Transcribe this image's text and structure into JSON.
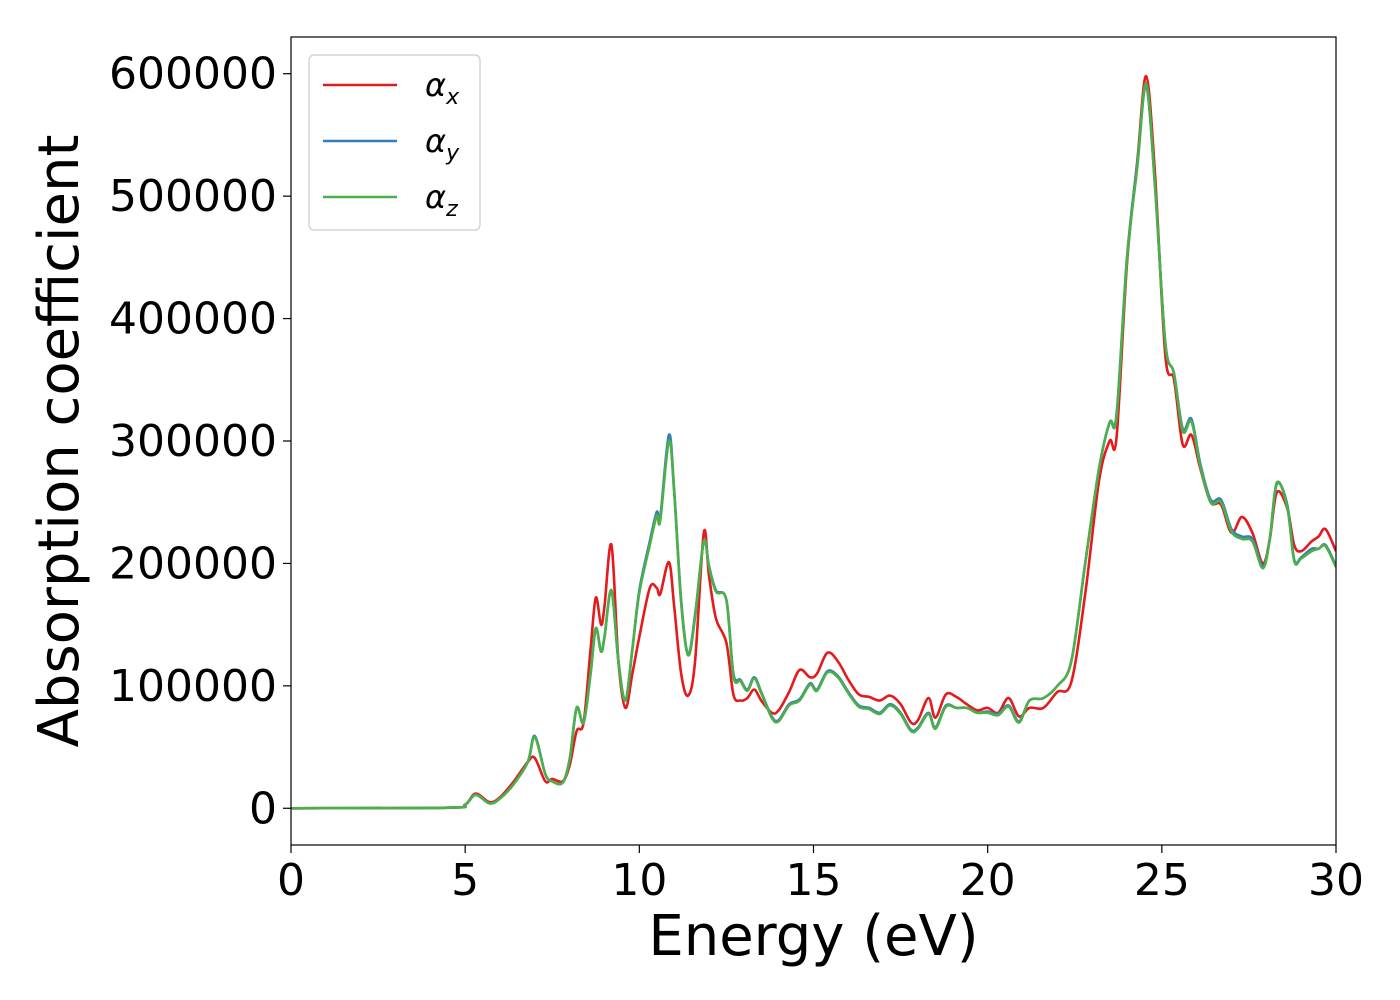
{
  "chart_data": {
    "type": "line",
    "title": "",
    "xlabel": "Energy (eV)",
    "ylabel": "Absorption coefficient",
    "xlim": [
      0,
      30
    ],
    "ylim": [
      -30000,
      630000
    ],
    "xticks": [
      0,
      5,
      10,
      15,
      20,
      25,
      30
    ],
    "yticks": [
      0,
      100000,
      200000,
      300000,
      400000,
      500000,
      600000
    ],
    "grid": false,
    "legend_position": "top-left",
    "series": [
      {
        "name": "α",
        "subscript": "x",
        "color": "#e41a1c",
        "points": [
          [
            0,
            0
          ],
          [
            4.5,
            500
          ],
          [
            5,
            3000
          ],
          [
            5.3,
            12000
          ],
          [
            5.7,
            5000
          ],
          [
            6,
            9000
          ],
          [
            6.4,
            22000
          ],
          [
            6.8,
            38000
          ],
          [
            7,
            41000
          ],
          [
            7.3,
            22000
          ],
          [
            7.5,
            24000
          ],
          [
            7.8,
            22000
          ],
          [
            8.0,
            35000
          ],
          [
            8.2,
            63000
          ],
          [
            8.4,
            70000
          ],
          [
            8.6,
            130000
          ],
          [
            8.75,
            172000
          ],
          [
            8.9,
            150000
          ],
          [
            9.0,
            165000
          ],
          [
            9.2,
            215000
          ],
          [
            9.4,
            120000
          ],
          [
            9.6,
            82000
          ],
          [
            9.8,
            110000
          ],
          [
            10.0,
            140000
          ],
          [
            10.3,
            180000
          ],
          [
            10.5,
            180000
          ],
          [
            10.6,
            175000
          ],
          [
            10.85,
            201000
          ],
          [
            11.0,
            165000
          ],
          [
            11.2,
            110000
          ],
          [
            11.4,
            92000
          ],
          [
            11.6,
            120000
          ],
          [
            11.85,
            225000
          ],
          [
            12.0,
            190000
          ],
          [
            12.2,
            155000
          ],
          [
            12.5,
            135000
          ],
          [
            12.7,
            93000
          ],
          [
            12.9,
            88000
          ],
          [
            13.1,
            90000
          ],
          [
            13.3,
            97000
          ],
          [
            13.5,
            88000
          ],
          [
            13.8,
            78000
          ],
          [
            14.0,
            80000
          ],
          [
            14.3,
            95000
          ],
          [
            14.6,
            113000
          ],
          [
            14.9,
            107000
          ],
          [
            15.1,
            110000
          ],
          [
            15.4,
            127000
          ],
          [
            15.7,
            120000
          ],
          [
            16.0,
            105000
          ],
          [
            16.3,
            93000
          ],
          [
            16.6,
            91000
          ],
          [
            16.9,
            88000
          ],
          [
            17.2,
            92000
          ],
          [
            17.5,
            85000
          ],
          [
            17.8,
            70000
          ],
          [
            18.0,
            72000
          ],
          [
            18.3,
            90000
          ],
          [
            18.5,
            74000
          ],
          [
            18.8,
            93000
          ],
          [
            19.1,
            91000
          ],
          [
            19.4,
            85000
          ],
          [
            19.7,
            80000
          ],
          [
            20.0,
            82000
          ],
          [
            20.3,
            78000
          ],
          [
            20.6,
            90000
          ],
          [
            20.9,
            75000
          ],
          [
            21.2,
            82000
          ],
          [
            21.6,
            82000
          ],
          [
            22.0,
            95000
          ],
          [
            22.4,
            103000
          ],
          [
            22.8,
            175000
          ],
          [
            23.2,
            268000
          ],
          [
            23.5,
            300000
          ],
          [
            23.7,
            303000
          ],
          [
            24.0,
            445000
          ],
          [
            24.3,
            530000
          ],
          [
            24.55,
            598000
          ],
          [
            24.8,
            520000
          ],
          [
            25.1,
            370000
          ],
          [
            25.35,
            350000
          ],
          [
            25.6,
            297000
          ],
          [
            25.85,
            305000
          ],
          [
            26.1,
            278000
          ],
          [
            26.4,
            250000
          ],
          [
            26.7,
            248000
          ],
          [
            27.0,
            225000
          ],
          [
            27.3,
            238000
          ],
          [
            27.6,
            225000
          ],
          [
            27.9,
            200000
          ],
          [
            28.1,
            220000
          ],
          [
            28.3,
            258000
          ],
          [
            28.6,
            245000
          ],
          [
            28.8,
            215000
          ],
          [
            29.0,
            210000
          ],
          [
            29.3,
            218000
          ],
          [
            29.5,
            222000
          ],
          [
            29.7,
            228000
          ],
          [
            30.0,
            210000
          ]
        ]
      },
      {
        "name": "α",
        "subscript": "y",
        "color": "#377eb8",
        "points": [
          [
            0,
            0
          ],
          [
            4.5,
            500
          ],
          [
            5,
            3000
          ],
          [
            5.3,
            11000
          ],
          [
            5.7,
            4000
          ],
          [
            6,
            8000
          ],
          [
            6.4,
            20000
          ],
          [
            6.8,
            38000
          ],
          [
            7,
            59000
          ],
          [
            7.3,
            28000
          ],
          [
            7.5,
            22000
          ],
          [
            7.8,
            21000
          ],
          [
            8.0,
            40000
          ],
          [
            8.2,
            82000
          ],
          [
            8.4,
            70000
          ],
          [
            8.6,
            110000
          ],
          [
            8.75,
            147000
          ],
          [
            8.9,
            128000
          ],
          [
            9.0,
            140000
          ],
          [
            9.2,
            178000
          ],
          [
            9.4,
            120000
          ],
          [
            9.6,
            88000
          ],
          [
            9.8,
            130000
          ],
          [
            10.0,
            178000
          ],
          [
            10.3,
            218000
          ],
          [
            10.5,
            242000
          ],
          [
            10.6,
            238000
          ],
          [
            10.85,
            305000
          ],
          [
            11.0,
            260000
          ],
          [
            11.2,
            170000
          ],
          [
            11.4,
            126000
          ],
          [
            11.6,
            158000
          ],
          [
            11.85,
            218000
          ],
          [
            12.0,
            198000
          ],
          [
            12.2,
            178000
          ],
          [
            12.5,
            170000
          ],
          [
            12.7,
            110000
          ],
          [
            12.9,
            105000
          ],
          [
            13.1,
            97000
          ],
          [
            13.3,
            107000
          ],
          [
            13.5,
            95000
          ],
          [
            13.8,
            75000
          ],
          [
            14.0,
            72000
          ],
          [
            14.3,
            85000
          ],
          [
            14.6,
            89000
          ],
          [
            14.9,
            102000
          ],
          [
            15.1,
            97000
          ],
          [
            15.4,
            112000
          ],
          [
            15.7,
            108000
          ],
          [
            16.0,
            95000
          ],
          [
            16.3,
            84000
          ],
          [
            16.6,
            82000
          ],
          [
            16.9,
            78000
          ],
          [
            17.2,
            85000
          ],
          [
            17.5,
            78000
          ],
          [
            17.8,
            64000
          ],
          [
            18.0,
            66000
          ],
          [
            18.3,
            78000
          ],
          [
            18.5,
            66000
          ],
          [
            18.8,
            84000
          ],
          [
            19.1,
            82000
          ],
          [
            19.4,
            82000
          ],
          [
            19.7,
            78000
          ],
          [
            20.0,
            79000
          ],
          [
            20.3,
            77000
          ],
          [
            20.6,
            84000
          ],
          [
            20.9,
            71000
          ],
          [
            21.2,
            88000
          ],
          [
            21.6,
            90000
          ],
          [
            22.0,
            100000
          ],
          [
            22.4,
            120000
          ],
          [
            22.8,
            200000
          ],
          [
            23.2,
            278000
          ],
          [
            23.5,
            315000
          ],
          [
            23.7,
            322000
          ],
          [
            24.0,
            450000
          ],
          [
            24.3,
            528000
          ],
          [
            24.55,
            590000
          ],
          [
            24.8,
            510000
          ],
          [
            25.1,
            380000
          ],
          [
            25.35,
            355000
          ],
          [
            25.6,
            310000
          ],
          [
            25.85,
            318000
          ],
          [
            26.1,
            282000
          ],
          [
            26.4,
            252000
          ],
          [
            26.7,
            252000
          ],
          [
            27.0,
            228000
          ],
          [
            27.3,
            222000
          ],
          [
            27.6,
            220000
          ],
          [
            27.9,
            198000
          ],
          [
            28.1,
            220000
          ],
          [
            28.3,
            265000
          ],
          [
            28.6,
            248000
          ],
          [
            28.8,
            203000
          ],
          [
            29.0,
            205000
          ],
          [
            29.3,
            212000
          ],
          [
            29.5,
            212000
          ],
          [
            29.7,
            215000
          ],
          [
            30.0,
            198000
          ]
        ]
      },
      {
        "name": "α",
        "subscript": "z",
        "color": "#4daf4a",
        "points": [
          [
            0,
            0
          ],
          [
            4.5,
            500
          ],
          [
            5,
            3000
          ],
          [
            5.3,
            11000
          ],
          [
            5.7,
            4000
          ],
          [
            6,
            8000
          ],
          [
            6.4,
            20000
          ],
          [
            6.8,
            38000
          ],
          [
            7,
            58000
          ],
          [
            7.3,
            28000
          ],
          [
            7.5,
            22000
          ],
          [
            7.8,
            21000
          ],
          [
            8.0,
            40000
          ],
          [
            8.2,
            82000
          ],
          [
            8.4,
            70000
          ],
          [
            8.6,
            110000
          ],
          [
            8.75,
            147000
          ],
          [
            8.9,
            128000
          ],
          [
            9.0,
            140000
          ],
          [
            9.2,
            178000
          ],
          [
            9.4,
            120000
          ],
          [
            9.6,
            88000
          ],
          [
            9.8,
            130000
          ],
          [
            10.0,
            176000
          ],
          [
            10.3,
            215000
          ],
          [
            10.5,
            239000
          ],
          [
            10.6,
            235000
          ],
          [
            10.85,
            300000
          ],
          [
            11.0,
            258000
          ],
          [
            11.2,
            168000
          ],
          [
            11.4,
            125000
          ],
          [
            11.6,
            156000
          ],
          [
            11.85,
            218000
          ],
          [
            12.0,
            197000
          ],
          [
            12.2,
            177000
          ],
          [
            12.5,
            170000
          ],
          [
            12.7,
            108000
          ],
          [
            12.9,
            104000
          ],
          [
            13.1,
            96000
          ],
          [
            13.3,
            106000
          ],
          [
            13.5,
            94000
          ],
          [
            13.8,
            74000
          ],
          [
            14.0,
            71000
          ],
          [
            14.3,
            84000
          ],
          [
            14.6,
            88000
          ],
          [
            14.9,
            101000
          ],
          [
            15.1,
            96000
          ],
          [
            15.4,
            111000
          ],
          [
            15.7,
            107000
          ],
          [
            16.0,
            94000
          ],
          [
            16.3,
            83000
          ],
          [
            16.6,
            81000
          ],
          [
            16.9,
            77000
          ],
          [
            17.2,
            84000
          ],
          [
            17.5,
            77000
          ],
          [
            17.8,
            63000
          ],
          [
            18.0,
            65000
          ],
          [
            18.3,
            77000
          ],
          [
            18.5,
            65000
          ],
          [
            18.8,
            83000
          ],
          [
            19.1,
            82000
          ],
          [
            19.4,
            82000
          ],
          [
            19.7,
            78000
          ],
          [
            20.0,
            78000
          ],
          [
            20.3,
            76000
          ],
          [
            20.6,
            83000
          ],
          [
            20.9,
            70000
          ],
          [
            21.2,
            88000
          ],
          [
            21.6,
            90000
          ],
          [
            22.0,
            100000
          ],
          [
            22.4,
            120000
          ],
          [
            22.8,
            200000
          ],
          [
            23.2,
            278000
          ],
          [
            23.5,
            315000
          ],
          [
            23.7,
            320000
          ],
          [
            24.0,
            448000
          ],
          [
            24.3,
            525000
          ],
          [
            24.55,
            592000
          ],
          [
            24.8,
            510000
          ],
          [
            25.1,
            380000
          ],
          [
            25.35,
            355000
          ],
          [
            25.6,
            308000
          ],
          [
            25.85,
            316000
          ],
          [
            26.1,
            280000
          ],
          [
            26.4,
            250000
          ],
          [
            26.7,
            250000
          ],
          [
            27.0,
            226000
          ],
          [
            27.3,
            220000
          ],
          [
            27.6,
            218000
          ],
          [
            27.9,
            196000
          ],
          [
            28.1,
            220000
          ],
          [
            28.3,
            266000
          ],
          [
            28.6,
            246000
          ],
          [
            28.8,
            202000
          ],
          [
            29.0,
            204000
          ],
          [
            29.3,
            210000
          ],
          [
            29.5,
            212000
          ],
          [
            29.7,
            214000
          ],
          [
            30.0,
            197000
          ]
        ]
      }
    ]
  }
}
